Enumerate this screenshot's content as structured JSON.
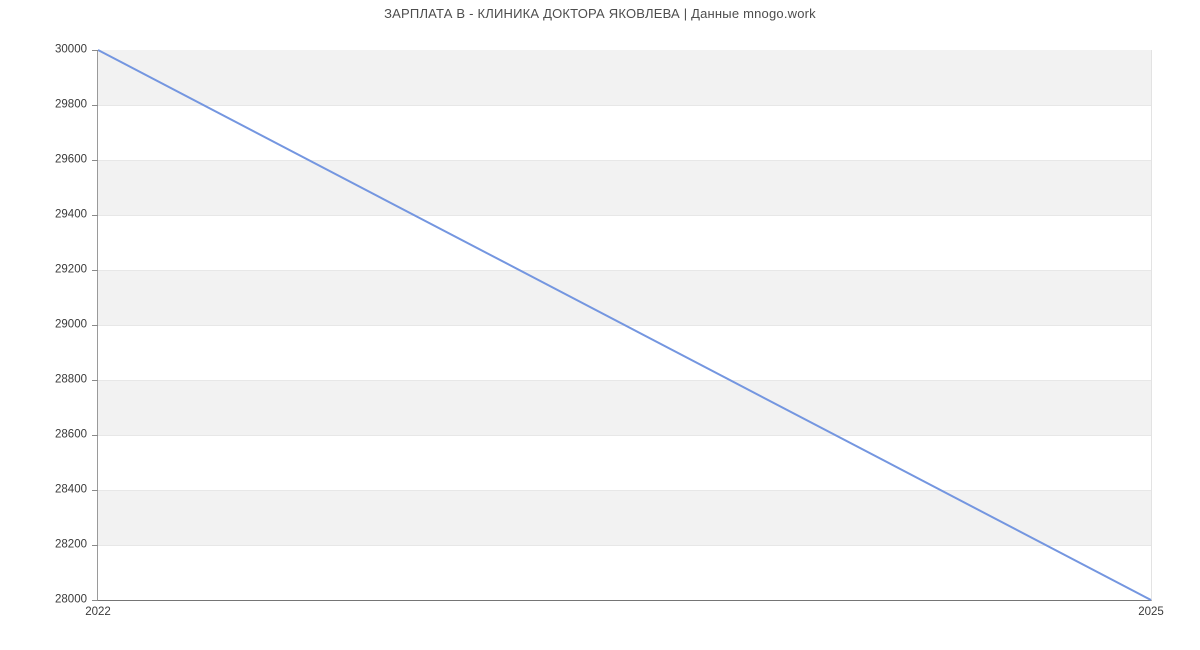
{
  "title": "ЗАРПЛАТА В - КЛИНИКА ДОКТОРА ЯКОВЛЕВА | Данные mnogo.work",
  "chart_data": {
    "type": "line",
    "title": "ЗАРПЛАТА В - КЛИНИКА ДОКТОРА ЯКОВЛЕВА | Данные mnogo.work",
    "x": [
      "2022",
      "2025"
    ],
    "values": [
      30000,
      28000
    ],
    "ylim": [
      28000,
      30000
    ],
    "ytick_step": 200,
    "ytick_labels": [
      "30000",
      "29800",
      "29600",
      "29400",
      "29200",
      "29000",
      "28800",
      "28600",
      "28400",
      "28200",
      "28000"
    ],
    "xtick_labels": [
      "2022",
      "2025"
    ],
    "xlabel": "",
    "ylabel": "",
    "legend": "none",
    "grid": "horizontal-bands",
    "band_pattern": "alternating starting gray at top"
  },
  "colors": {
    "background": "#ffffff",
    "line": "#7496e0",
    "stripe": "#f2f2f2",
    "gridline": "#e7e7e7",
    "axis_left": "#9a9a9a",
    "axis_bottom": "#757575",
    "axis_right": "#e3e3e3",
    "tick_mark": "#8a8a8a",
    "label_text": "#3a3a3a",
    "title_text": "#4d4d4d"
  }
}
